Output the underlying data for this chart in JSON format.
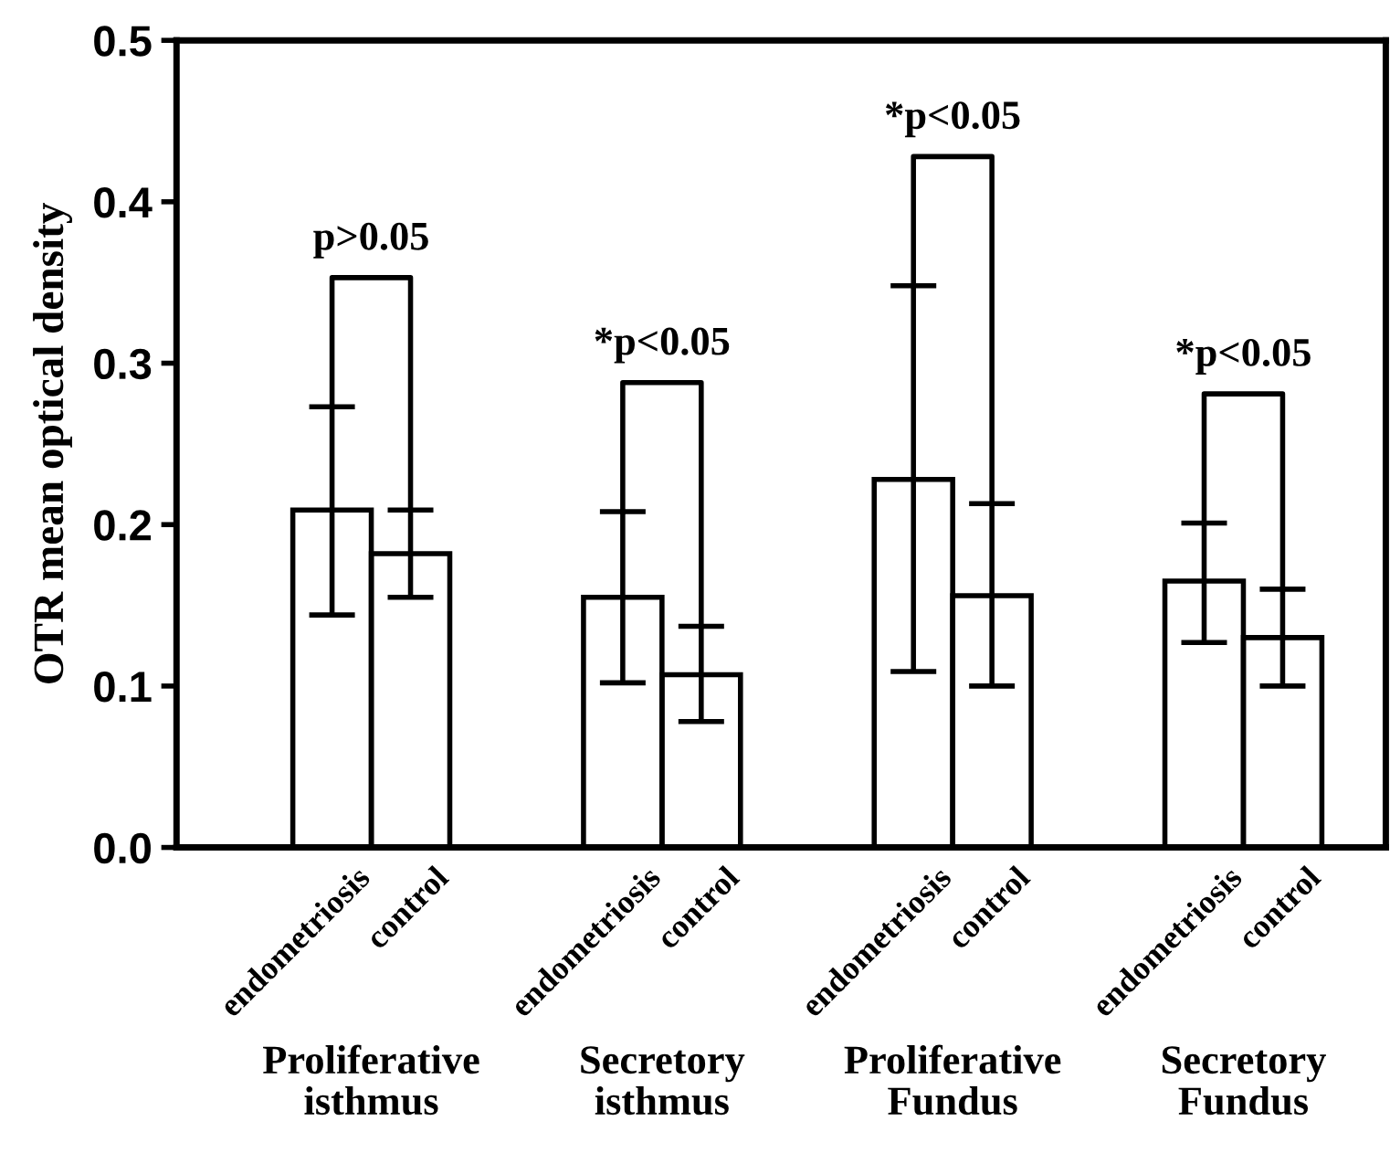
{
  "chart_data": {
    "type": "bar",
    "ylabel": "OTR mean optical density",
    "categories": [
      "Proliferative\nisthmus",
      "Secretory\nisthmus",
      "Proliferative\nFundus",
      "Secretory\nFundus"
    ],
    "series": [
      {
        "name": "endometriosis",
        "color": "#ffffff",
        "values": [
          0.209,
          0.155,
          0.228,
          0.165
        ],
        "errors": [
          [
            0.144,
            0.273
          ],
          [
            0.102,
            0.208
          ],
          [
            0.109,
            0.348
          ],
          [
            0.127,
            0.201
          ]
        ]
      },
      {
        "name": "control",
        "color": "#ffffff",
        "values": [
          0.182,
          0.107,
          0.156,
          0.13
        ],
        "errors": [
          [
            0.155,
            0.209
          ],
          [
            0.078,
            0.137
          ],
          [
            0.1,
            0.213
          ],
          [
            0.1,
            0.16
          ]
        ]
      }
    ],
    "annotations": [
      "p>0.05",
      "*p<0.05",
      "*p<0.05",
      "*p<0.05"
    ],
    "ylim": [
      0.0,
      0.5
    ],
    "yticks": [
      "0.0",
      0.1,
      0.2,
      0.3,
      0.4,
      0.5
    ],
    "grid": false,
    "legend": false
  }
}
